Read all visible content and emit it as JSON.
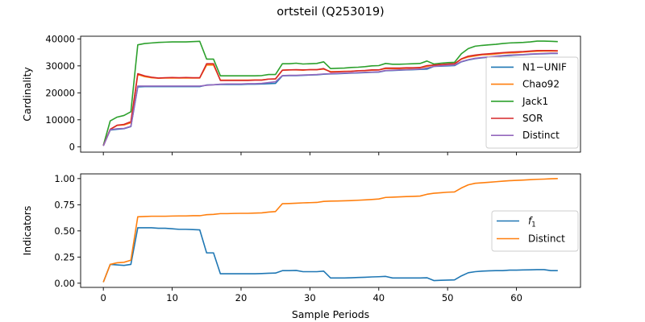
{
  "title": "ortsteil (Q253019)",
  "chart_data": [
    {
      "type": "line",
      "ylabel": "Cardinality",
      "xlabel": "",
      "xlim": [
        -3.3,
        69.3
      ],
      "ylim": [
        -2000,
        41000
      ],
      "xticks": [
        0,
        10,
        20,
        30,
        40,
        50,
        60
      ],
      "yticks": [
        0,
        10000,
        20000,
        30000,
        40000
      ],
      "ytick_labels": [
        "0",
        "10000",
        "20000",
        "30000",
        "40000"
      ],
      "legend_position": "lower-right",
      "x": [
        0,
        1,
        2,
        3,
        4,
        5,
        6,
        7,
        8,
        9,
        10,
        11,
        12,
        13,
        14,
        15,
        16,
        17,
        18,
        19,
        20,
        21,
        22,
        23,
        24,
        25,
        26,
        27,
        28,
        29,
        30,
        31,
        32,
        33,
        34,
        35,
        36,
        37,
        38,
        39,
        40,
        41,
        42,
        43,
        44,
        45,
        46,
        47,
        48,
        49,
        50,
        51,
        52,
        53,
        54,
        55,
        56,
        57,
        58,
        59,
        60,
        61,
        62,
        63,
        64,
        65,
        66
      ],
      "series": [
        {
          "name": "N1−UNIF",
          "color": "#1f77b4",
          "values": [
            400,
            6200,
            6500,
            6700,
            7500,
            22200,
            22300,
            22300,
            22300,
            22300,
            22300,
            22300,
            22300,
            22300,
            22300,
            22900,
            23000,
            23100,
            23100,
            23100,
            23100,
            23200,
            23200,
            23300,
            23400,
            23500,
            26300,
            26400,
            26400,
            26500,
            26600,
            26700,
            26900,
            27000,
            27100,
            27200,
            27300,
            27400,
            27500,
            27600,
            27700,
            28200,
            28300,
            28400,
            28500,
            28600,
            28700,
            28800,
            29800,
            29900,
            30000,
            30100,
            31500,
            32200,
            32700,
            33000,
            33200,
            33500,
            33700,
            33800,
            34000,
            34100,
            34300,
            34400,
            34500,
            34600,
            34600
          ]
        },
        {
          "name": "Chao92",
          "color": "#ff7f0e",
          "values": [
            400,
            6400,
            7900,
            8100,
            8900,
            26800,
            26000,
            25600,
            25400,
            25500,
            25500,
            25500,
            25500,
            25500,
            25500,
            30300,
            30300,
            24700,
            24700,
            24700,
            24700,
            24700,
            24800,
            24800,
            25100,
            25100,
            28400,
            28500,
            28500,
            28400,
            28600,
            28600,
            28800,
            27900,
            27900,
            28000,
            28000,
            28200,
            28200,
            28400,
            28500,
            29000,
            29000,
            29000,
            29100,
            29200,
            29300,
            29800,
            30300,
            30400,
            30600,
            30700,
            32500,
            33300,
            33700,
            34100,
            34200,
            34400,
            34700,
            34800,
            34900,
            35100,
            35300,
            35400,
            35500,
            35500,
            35500
          ]
        },
        {
          "name": "Jack1",
          "color": "#2ca02c",
          "values": [
            500,
            9600,
            11000,
            11600,
            13000,
            37800,
            38300,
            38500,
            38700,
            38800,
            38900,
            38900,
            38900,
            39000,
            39100,
            32500,
            32500,
            26300,
            26300,
            26300,
            26300,
            26300,
            26300,
            26400,
            26800,
            26800,
            30800,
            30800,
            31000,
            30700,
            30800,
            30900,
            31500,
            29000,
            29100,
            29200,
            29400,
            29500,
            29700,
            30000,
            30100,
            30900,
            30600,
            30600,
            30700,
            30800,
            30900,
            31800,
            30700,
            31000,
            31200,
            31300,
            34500,
            36400,
            37300,
            37600,
            37800,
            38000,
            38300,
            38500,
            38600,
            38700,
            38900,
            39200,
            39200,
            39100,
            39000
          ]
        },
        {
          "name": "SOR",
          "color": "#d62728",
          "values": [
            400,
            6500,
            8000,
            8300,
            9300,
            27100,
            26300,
            25800,
            25500,
            25600,
            25700,
            25600,
            25700,
            25600,
            25600,
            30800,
            30800,
            24600,
            24600,
            24600,
            24600,
            24600,
            24700,
            24700,
            25100,
            25200,
            28400,
            28500,
            28600,
            28500,
            28600,
            28600,
            29000,
            27700,
            27800,
            27900,
            28000,
            28200,
            28300,
            28500,
            28500,
            29200,
            29200,
            29200,
            29300,
            29300,
            29400,
            30100,
            30300,
            30500,
            30700,
            30800,
            32600,
            33600,
            34000,
            34300,
            34500,
            34700,
            34900,
            35100,
            35200,
            35300,
            35500,
            35700,
            35700,
            35700,
            35600
          ]
        },
        {
          "name": "Distinct",
          "color": "#9467bd",
          "values": [
            300,
            6300,
            6700,
            6800,
            7600,
            22500,
            22500,
            22500,
            22500,
            22500,
            22500,
            22500,
            22500,
            22500,
            22500,
            22800,
            23000,
            23200,
            23300,
            23300,
            23300,
            23400,
            23400,
            23500,
            23800,
            24100,
            26400,
            26500,
            26500,
            26600,
            26700,
            26800,
            27000,
            27100,
            27200,
            27300,
            27400,
            27500,
            27600,
            27700,
            27800,
            28300,
            28400,
            28500,
            28600,
            28700,
            28800,
            29200,
            29800,
            30000,
            30200,
            30300,
            31600,
            32300,
            32800,
            33100,
            33300,
            33600,
            33800,
            34000,
            34100,
            34200,
            34400,
            34500,
            34600,
            34700,
            34700
          ]
        }
      ]
    },
    {
      "type": "line",
      "ylabel": "Indicators",
      "xlabel": "Sample Periods",
      "xlim": [
        -3.3,
        69.3
      ],
      "ylim": [
        -0.04,
        1.045
      ],
      "xticks": [
        0,
        10,
        20,
        30,
        40,
        50,
        60
      ],
      "yticks": [
        0,
        0.25,
        0.5,
        0.75,
        1.0
      ],
      "ytick_labels": [
        "0.00",
        "0.25",
        "0.50",
        "0.75",
        "1.00"
      ],
      "legend_position": "center-right",
      "x": [
        0,
        1,
        2,
        3,
        4,
        5,
        6,
        7,
        8,
        9,
        10,
        11,
        12,
        13,
        14,
        15,
        16,
        17,
        18,
        19,
        20,
        21,
        22,
        23,
        24,
        25,
        26,
        27,
        28,
        29,
        30,
        31,
        32,
        33,
        34,
        35,
        36,
        37,
        38,
        39,
        40,
        41,
        42,
        43,
        44,
        45,
        46,
        47,
        48,
        49,
        50,
        51,
        52,
        53,
        54,
        55,
        56,
        57,
        58,
        59,
        60,
        61,
        62,
        63,
        64,
        65,
        66
      ],
      "series": [
        {
          "name": "f1",
          "legend_main": "f",
          "legend_sub": "1",
          "color": "#1f77b4",
          "values": [
            0.01,
            0.18,
            0.175,
            0.17,
            0.18,
            0.53,
            0.53,
            0.53,
            0.525,
            0.525,
            0.52,
            0.515,
            0.515,
            0.513,
            0.51,
            0.29,
            0.29,
            0.09,
            0.09,
            0.09,
            0.09,
            0.09,
            0.09,
            0.092,
            0.095,
            0.097,
            0.12,
            0.12,
            0.122,
            0.11,
            0.11,
            0.11,
            0.115,
            0.05,
            0.05,
            0.05,
            0.052,
            0.055,
            0.057,
            0.06,
            0.062,
            0.065,
            0.05,
            0.05,
            0.05,
            0.05,
            0.05,
            0.052,
            0.025,
            0.028,
            0.03,
            0.032,
            0.07,
            0.1,
            0.11,
            0.115,
            0.118,
            0.12,
            0.12,
            0.125,
            0.125,
            0.127,
            0.128,
            0.13,
            0.13,
            0.12,
            0.12
          ]
        },
        {
          "name": "Distinct",
          "color": "#ff7f0e",
          "values": [
            0.01,
            0.18,
            0.195,
            0.2,
            0.22,
            0.635,
            0.638,
            0.64,
            0.64,
            0.64,
            0.642,
            0.643,
            0.643,
            0.645,
            0.645,
            0.655,
            0.658,
            0.665,
            0.665,
            0.667,
            0.668,
            0.668,
            0.67,
            0.672,
            0.68,
            0.685,
            0.76,
            0.762,
            0.765,
            0.768,
            0.77,
            0.772,
            0.782,
            0.785,
            0.786,
            0.788,
            0.79,
            0.793,
            0.796,
            0.8,
            0.805,
            0.82,
            0.822,
            0.825,
            0.828,
            0.83,
            0.833,
            0.85,
            0.86,
            0.865,
            0.87,
            0.872,
            0.91,
            0.94,
            0.955,
            0.96,
            0.965,
            0.97,
            0.975,
            0.98,
            0.983,
            0.986,
            0.99,
            0.993,
            0.995,
            0.998,
            1.0
          ]
        }
      ]
    }
  ]
}
